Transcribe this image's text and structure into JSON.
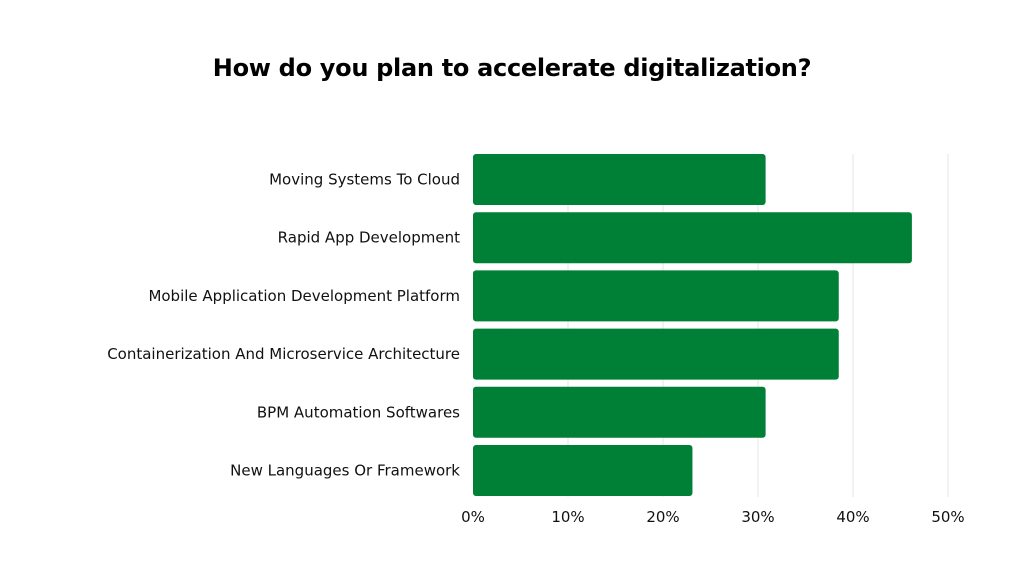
{
  "chart_data": {
    "type": "bar",
    "orientation": "horizontal",
    "title": "How do you plan to accelerate digitalization?",
    "categories": [
      "Moving Systems To Cloud",
      "Rapid App Development",
      "Mobile Application Development Platform",
      "Containerization And Microservice Architecture",
      "BPM Automation Softwares",
      "New Languages Or Framework"
    ],
    "values": [
      30.8,
      46.2,
      38.5,
      38.5,
      30.8,
      23.1
    ],
    "xlim": [
      0,
      50
    ],
    "x_ticks": [
      0,
      10,
      20,
      30,
      40,
      50
    ],
    "x_tick_labels": [
      "0%",
      "10%",
      "20%",
      "30%",
      "40%",
      "50%"
    ],
    "xlabel": "",
    "ylabel": "",
    "grid": true,
    "legend": "none",
    "bar_color": "#007F36",
    "grid_color": "#E6E6E6"
  }
}
